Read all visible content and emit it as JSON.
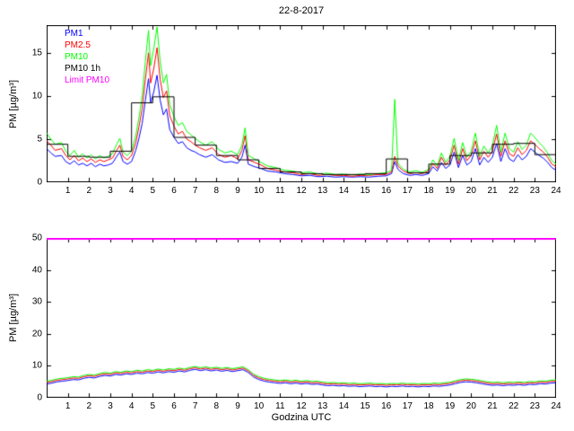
{
  "title": "22-8-2017",
  "axis_color": "#000000",
  "legend": [
    {
      "label": "PM1",
      "color": "#0000ff"
    },
    {
      "label": "PM2.5",
      "color": "#ff0000"
    },
    {
      "label": "PM10",
      "color": "#00ff00"
    },
    {
      "label": "PM10 1h",
      "color": "#000000"
    },
    {
      "label": "Limit PM10",
      "color": "#ff00ff"
    }
  ],
  "chart_data": [
    {
      "type": "line",
      "title": "22-8-2017",
      "xlabel": "",
      "ylabel": "PM [µg/m³]",
      "xlim": [
        0,
        24
      ],
      "ylim": [
        0,
        18.2
      ],
      "yticks": [
        0,
        5,
        10,
        15
      ],
      "xticks": [
        1,
        2,
        3,
        4,
        5,
        6,
        7,
        8,
        9,
        10,
        11,
        12,
        13,
        14,
        15,
        16,
        17,
        18,
        19,
        20,
        21,
        22,
        23,
        24
      ],
      "grid": false,
      "legend_position": "top-left",
      "x": [
        0.0,
        0.2,
        0.4,
        0.7,
        0.9,
        1.1,
        1.3,
        1.5,
        1.7,
        1.9,
        2.1,
        2.3,
        2.5,
        2.7,
        2.9,
        3.1,
        3.3,
        3.45,
        3.6,
        3.8,
        4.0,
        4.2,
        4.35,
        4.5,
        4.65,
        4.8,
        4.9,
        5.05,
        5.2,
        5.35,
        5.5,
        5.65,
        5.8,
        6.0,
        6.2,
        6.4,
        6.6,
        6.8,
        7.0,
        7.2,
        7.5,
        7.8,
        8.1,
        8.4,
        8.7,
        9.0,
        9.2,
        9.35,
        9.5,
        9.8,
        10.1,
        10.4,
        10.8,
        11.2,
        11.6,
        12.0,
        12.4,
        12.8,
        13.2,
        13.6,
        14.0,
        14.4,
        14.8,
        15.2,
        15.6,
        16.0,
        16.25,
        16.4,
        16.55,
        16.8,
        17.1,
        17.4,
        17.7,
        18.0,
        18.2,
        18.4,
        18.6,
        18.8,
        19.0,
        19.2,
        19.4,
        19.6,
        19.8,
        20.0,
        20.2,
        20.4,
        20.6,
        20.8,
        21.0,
        21.2,
        21.4,
        21.6,
        21.8,
        22.0,
        22.2,
        22.4,
        22.6,
        22.8,
        23.0,
        23.2,
        23.4,
        23.6,
        23.8,
        24.0
      ],
      "series": [
        {
          "name": "PM1",
          "color": "#0000ff",
          "values": [
            3.9,
            3.4,
            3.0,
            3.1,
            2.4,
            2.1,
            2.5,
            2.0,
            2.2,
            1.9,
            2.2,
            1.8,
            2.1,
            1.9,
            2.0,
            2.2,
            3.0,
            3.5,
            2.4,
            2.1,
            2.4,
            3.7,
            5.1,
            6.8,
            9.5,
            12.0,
            9.2,
            10.5,
            12.4,
            9.5,
            7.8,
            8.5,
            6.1,
            5.2,
            4.5,
            4.7,
            4.0,
            3.7,
            3.5,
            3.2,
            2.9,
            3.2,
            2.6,
            2.3,
            2.4,
            2.2,
            2.9,
            4.3,
            2.1,
            1.8,
            1.6,
            1.3,
            1.2,
            1.0,
            0.9,
            0.75,
            0.8,
            0.65,
            0.7,
            0.6,
            0.65,
            0.6,
            0.65,
            0.6,
            0.7,
            0.75,
            1.0,
            2.4,
            1.5,
            1.0,
            0.8,
            0.9,
            0.8,
            1.0,
            1.8,
            1.3,
            2.3,
            1.6,
            2.0,
            3.5,
            1.7,
            3.1,
            2.0,
            2.4,
            3.9,
            2.0,
            2.9,
            2.3,
            2.9,
            4.5,
            2.4,
            3.9,
            2.7,
            2.4,
            3.2,
            2.6,
            3.0,
            3.9,
            3.5,
            3.1,
            2.8,
            2.3,
            1.7,
            1.4
          ]
        },
        {
          "name": "PM2.5",
          "color": "#ff0000",
          "values": [
            4.8,
            4.3,
            3.7,
            3.9,
            3.1,
            2.6,
            3.1,
            2.5,
            2.8,
            2.4,
            2.7,
            2.3,
            2.6,
            2.4,
            2.6,
            2.8,
            3.7,
            4.3,
            3.0,
            2.6,
            3.1,
            4.6,
            6.4,
            8.5,
            11.9,
            15.0,
            11.5,
            13.2,
            15.6,
            11.9,
            9.8,
            10.6,
            7.7,
            6.5,
            5.6,
            5.9,
            5.0,
            4.7,
            4.3,
            4.0,
            3.7,
            4.0,
            3.2,
            2.9,
            3.1,
            2.7,
            3.7,
            5.4,
            2.6,
            2.3,
            2.0,
            1.6,
            1.4,
            1.2,
            1.1,
            0.9,
            1.0,
            0.8,
            0.9,
            0.8,
            0.8,
            0.7,
            0.8,
            0.8,
            0.9,
            0.9,
            1.2,
            3.0,
            1.9,
            1.3,
            1.0,
            1.1,
            1.0,
            1.3,
            2.2,
            1.6,
            2.9,
            2.0,
            2.6,
            4.3,
            2.1,
            3.9,
            2.5,
            3.1,
            4.8,
            2.6,
            3.6,
            2.9,
            3.6,
            5.6,
            3.0,
            4.8,
            3.3,
            3.0,
            4.0,
            3.2,
            3.7,
            4.8,
            4.4,
            3.9,
            3.5,
            2.9,
            2.1,
            1.8
          ]
        },
        {
          "name": "PM10",
          "color": "#00ff00",
          "values": [
            5.7,
            5.0,
            4.4,
            4.6,
            3.6,
            3.1,
            3.7,
            2.9,
            3.3,
            2.8,
            3.2,
            2.7,
            3.1,
            2.8,
            3.0,
            3.3,
            4.4,
            5.1,
            3.5,
            3.1,
            3.6,
            5.4,
            7.5,
            10.0,
            14.0,
            17.6,
            13.5,
            15.5,
            18.0,
            14.0,
            11.5,
            12.5,
            9.0,
            7.6,
            6.6,
            6.9,
            5.9,
            5.5,
            5.1,
            4.7,
            4.3,
            4.7,
            3.8,
            3.4,
            3.6,
            3.2,
            4.3,
            6.3,
            3.1,
            2.7,
            2.3,
            1.9,
            1.7,
            1.4,
            1.3,
            1.1,
            1.2,
            0.95,
            1.05,
            0.9,
            0.95,
            0.85,
            0.95,
            0.9,
            1.0,
            1.1,
            1.4,
            9.6,
            2.2,
            1.5,
            1.2,
            1.35,
            1.15,
            1.5,
            2.6,
            1.9,
            3.4,
            2.3,
            3.0,
            5.1,
            2.5,
            4.6,
            2.9,
            3.6,
            5.7,
            3.0,
            4.2,
            3.4,
            4.2,
            6.6,
            3.5,
            5.7,
            3.9,
            3.5,
            4.7,
            3.8,
            4.3,
            5.7,
            5.2,
            4.6,
            4.1,
            3.4,
            2.5,
            2.1
          ]
        }
      ],
      "step_series": {
        "name": "PM10 1h",
        "color": "#000000",
        "hourly_values": [
          4.4,
          3.0,
          2.9,
          3.6,
          9.2,
          9.9,
          5.2,
          4.3,
          3.1,
          2.6,
          1.6,
          1.2,
          1.0,
          0.9,
          0.9,
          1.0,
          2.7,
          1.1,
          2.1,
          3.1,
          3.4,
          4.4,
          4.5,
          3.2
        ]
      },
      "limit": {
        "name": "Limit PM10",
        "color": "#ff00ff",
        "value": 50
      }
    },
    {
      "type": "line",
      "title": "",
      "xlabel": "Godzina UTC",
      "ylabel": "PM [µg/m³]",
      "xlim": [
        0,
        24
      ],
      "ylim": [
        0,
        50
      ],
      "yticks": [
        0,
        10,
        20,
        30,
        40,
        50
      ],
      "xticks": [
        1,
        2,
        3,
        4,
        5,
        6,
        7,
        8,
        9,
        10,
        11,
        12,
        13,
        14,
        15,
        16,
        17,
        18,
        19,
        20,
        21,
        22,
        23,
        24
      ],
      "grid": false,
      "x": {
        "start": 0,
        "step": 0.25,
        "count": 97
      },
      "series": [
        {
          "name": "PM1",
          "color": "#0000ff",
          "values": [
            4.3,
            4.6,
            5.0,
            5.2,
            5.4,
            5.7,
            5.6,
            6.1,
            6.4,
            6.2,
            6.7,
            7.0,
            6.8,
            7.3,
            7.1,
            7.5,
            7.3,
            7.7,
            7.5,
            7.9,
            7.7,
            8.1,
            7.8,
            8.2,
            8.0,
            8.4,
            8.1,
            8.6,
            8.9,
            8.5,
            8.8,
            8.4,
            8.7,
            8.3,
            8.6,
            8.2,
            8.5,
            8.8,
            7.9,
            6.5,
            5.7,
            5.2,
            4.9,
            4.7,
            4.5,
            4.7,
            4.4,
            4.6,
            4.3,
            4.5,
            4.2,
            4.3,
            4.0,
            3.8,
            3.9,
            3.7,
            3.8,
            3.6,
            3.7,
            3.5,
            3.6,
            3.7,
            3.5,
            3.6,
            3.4,
            3.6,
            3.5,
            3.7,
            3.5,
            3.6,
            3.4,
            3.6,
            3.5,
            3.7,
            3.6,
            3.8,
            4.0,
            4.4,
            4.8,
            5.0,
            4.9,
            4.7,
            4.4,
            4.1,
            3.9,
            4.0,
            3.8,
            4.0,
            3.9,
            4.1,
            3.9,
            4.2,
            4.1,
            4.4,
            4.3,
            4.6,
            4.7
          ]
        },
        {
          "name": "PM2.5",
          "color": "#ff0000",
          "values": [
            4.8,
            5.1,
            5.5,
            5.7,
            5.9,
            6.2,
            6.1,
            6.6,
            6.9,
            6.7,
            7.2,
            7.5,
            7.3,
            7.8,
            7.6,
            8.0,
            7.8,
            8.2,
            8.0,
            8.4,
            8.2,
            8.6,
            8.3,
            8.7,
            8.5,
            8.9,
            8.6,
            9.1,
            9.4,
            9.0,
            9.3,
            8.9,
            9.2,
            8.8,
            9.1,
            8.7,
            9.0,
            9.3,
            8.4,
            7.0,
            6.2,
            5.7,
            5.4,
            5.2,
            5.0,
            5.2,
            4.9,
            5.1,
            4.8,
            5.0,
            4.7,
            4.8,
            4.5,
            4.3,
            4.4,
            4.2,
            4.3,
            4.1,
            4.2,
            4.0,
            4.1,
            4.2,
            4.0,
            4.1,
            3.9,
            4.1,
            4.0,
            4.2,
            4.0,
            4.1,
            3.9,
            4.1,
            4.0,
            4.2,
            4.1,
            4.3,
            4.5,
            4.9,
            5.3,
            5.5,
            5.4,
            5.2,
            4.9,
            4.6,
            4.4,
            4.5,
            4.3,
            4.5,
            4.4,
            4.6,
            4.4,
            4.7,
            4.6,
            4.9,
            4.8,
            5.1,
            5.2
          ]
        },
        {
          "name": "PM10",
          "color": "#00ff00",
          "values": [
            5.2,
            5.5,
            5.9,
            6.1,
            6.3,
            6.6,
            6.5,
            7.0,
            7.3,
            7.1,
            7.6,
            7.9,
            7.7,
            8.2,
            8.0,
            8.4,
            8.2,
            8.6,
            8.4,
            8.8,
            8.6,
            9.0,
            8.7,
            9.1,
            8.9,
            9.3,
            9.0,
            9.5,
            9.8,
            9.4,
            9.7,
            9.3,
            9.6,
            9.2,
            9.5,
            9.1,
            9.4,
            9.7,
            8.8,
            7.4,
            6.6,
            6.1,
            5.8,
            5.6,
            5.4,
            5.6,
            5.3,
            5.5,
            5.2,
            5.4,
            5.1,
            5.2,
            4.9,
            4.7,
            4.8,
            4.6,
            4.7,
            4.5,
            4.6,
            4.4,
            4.5,
            4.6,
            4.4,
            4.5,
            4.3,
            4.5,
            4.4,
            4.6,
            4.4,
            4.5,
            4.3,
            4.5,
            4.4,
            4.6,
            4.5,
            4.7,
            4.9,
            5.3,
            5.7,
            5.9,
            5.8,
            5.6,
            5.3,
            5.0,
            4.8,
            4.9,
            4.7,
            4.9,
            4.8,
            5.0,
            4.8,
            5.1,
            5.0,
            5.3,
            5.2,
            5.5,
            5.6
          ]
        }
      ],
      "limit": {
        "name": "Limit PM10",
        "color": "#ff00ff",
        "value": 50
      }
    }
  ]
}
